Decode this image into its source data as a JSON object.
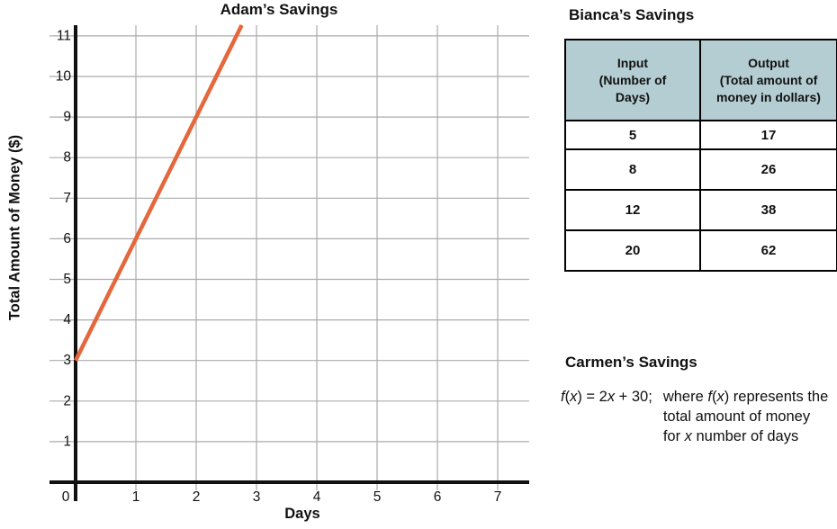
{
  "colors": {
    "line": "#E5673C",
    "table_header_bg": "#B4CDD2",
    "grid": "#ABABAB",
    "axis": "#111111"
  },
  "chart_data": [
    {
      "type": "line",
      "title": "Adam’s Savings",
      "xlabel": "Days",
      "ylabel": "Total Amount of Money ($)",
      "x_ticks": [
        0,
        1,
        2,
        3,
        4,
        5,
        6,
        7
      ],
      "y_ticks": [
        0,
        1,
        2,
        3,
        4,
        5,
        6,
        7,
        8,
        9,
        10,
        11
      ],
      "xlim": [
        0,
        7.5
      ],
      "ylim": [
        0,
        11.3
      ],
      "grid": true,
      "legend": "none",
      "series": [
        {
          "name": "Adam",
          "equation": "y = 3x + 3",
          "slope": 3,
          "intercept": 3,
          "points": [
            [
              0,
              3
            ],
            [
              1,
              6
            ],
            [
              2,
              9
            ]
          ],
          "color": "#E5673C"
        }
      ]
    },
    {
      "type": "table",
      "title": "Bianca’s Savings",
      "columns": [
        "Input\n(Number of\nDays)",
        "Output\n(Total amount of\nmoney in dollars)"
      ],
      "rows": [
        [
          "5",
          "17"
        ],
        [
          "8",
          "26"
        ],
        [
          "12",
          "38"
        ],
        [
          "20",
          "62"
        ]
      ]
    }
  ],
  "carmen": {
    "heading": "Carmen’s Savings",
    "equation": [
      {
        "t": "f",
        "i": 1
      },
      {
        "t": "("
      },
      {
        "t": "x",
        "i": 1
      },
      {
        "t": ") = 2"
      },
      {
        "t": "x",
        "i": 1
      },
      {
        "t": " + 30;"
      }
    ],
    "note": [
      [
        {
          "t": "where "
        },
        {
          "t": "f",
          "i": 1
        },
        {
          "t": "("
        },
        {
          "t": "x",
          "i": 1
        },
        {
          "t": ") represents the"
        }
      ],
      [
        {
          "t": "total amount of money"
        }
      ],
      [
        {
          "t": "for "
        },
        {
          "t": "x",
          "i": 1
        },
        {
          "t": " number of days"
        }
      ]
    ]
  }
}
